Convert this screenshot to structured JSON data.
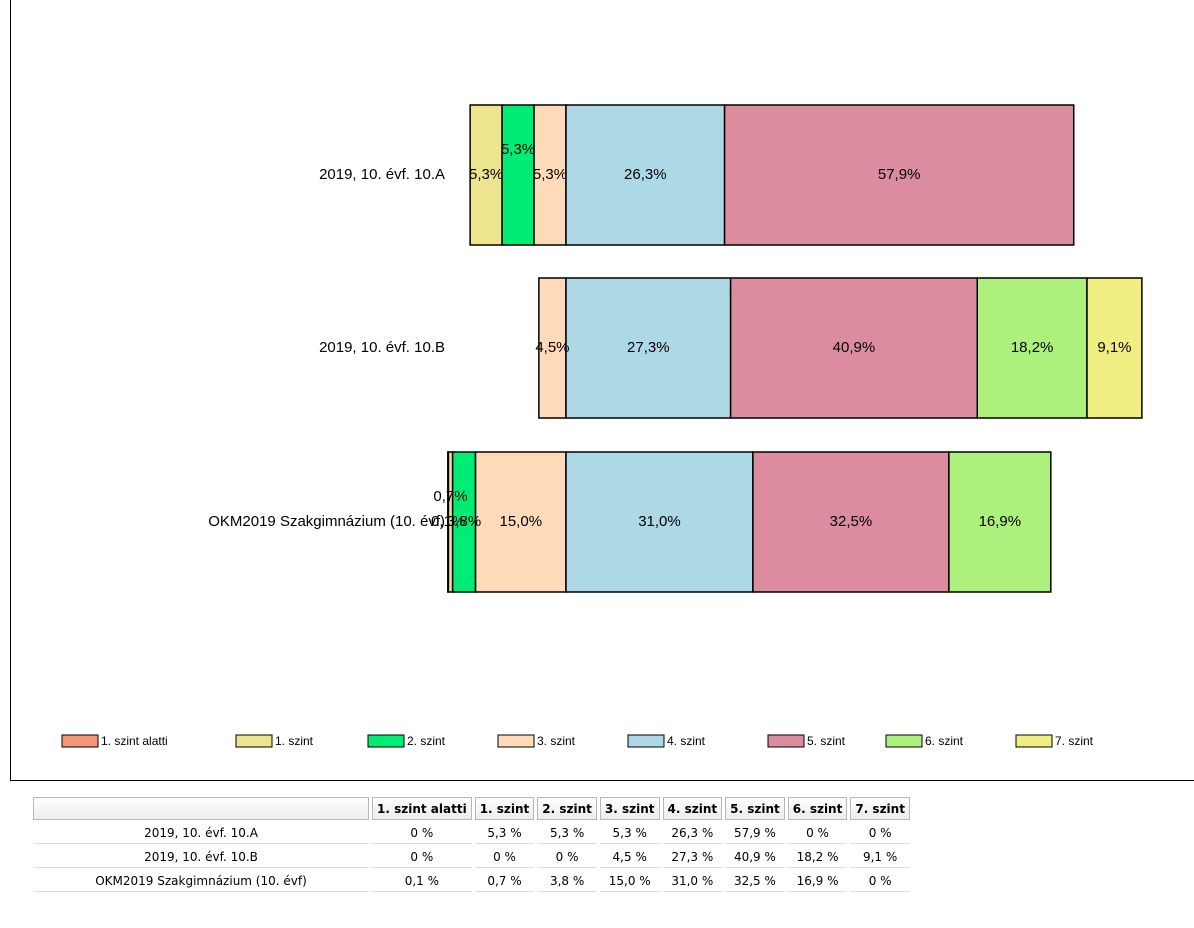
{
  "chart_data": {
    "type": "bar",
    "categories": [
      "2019, 10. évf. 10.A",
      "2019, 10. évf. 10.B",
      "OKM2019 Szakgimnázium (10. évf)"
    ],
    "series": [
      {
        "name": "1. szint alatti",
        "color": "#f4957a",
        "values": [
          0,
          0,
          0.1
        ],
        "value_labels": [
          null,
          null,
          "0,1%"
        ]
      },
      {
        "name": "1. szint",
        "color": "#ede48f",
        "values": [
          5.3,
          0,
          0.7
        ],
        "value_labels": [
          "5,3%",
          null,
          "0,7%"
        ]
      },
      {
        "name": "2. szint",
        "color": "#00ec74",
        "values": [
          5.3,
          0,
          3.8
        ],
        "value_labels": [
          "5,3%",
          null,
          "3,8%"
        ]
      },
      {
        "name": "3. szint",
        "color": "#ffdab8",
        "values": [
          5.3,
          4.5,
          15.0
        ],
        "value_labels": [
          "5,3%",
          "4,5%",
          "15,0%"
        ]
      },
      {
        "name": "4. szint",
        "color": "#add8e6",
        "values": [
          26.3,
          27.3,
          31.0
        ],
        "value_labels": [
          "26,3%",
          "27,3%",
          "31,0%"
        ]
      },
      {
        "name": "5. szint",
        "color": "#db8d9f",
        "values": [
          57.9,
          40.9,
          32.5
        ],
        "value_labels": [
          "57,9%",
          "40,9%",
          "32,5%"
        ]
      },
      {
        "name": "6. szint",
        "color": "#aef07c",
        "values": [
          0,
          18.2,
          16.9
        ],
        "value_labels": [
          null,
          "18,2%",
          "16,9%"
        ]
      },
      {
        "name": "7. szint",
        "color": "#f0ee80",
        "values": [
          0,
          9.1,
          0
        ],
        "value_labels": [
          null,
          "9,1%",
          null
        ]
      }
    ]
  },
  "table": {
    "header": [
      "1. szint alatti",
      "1. szint",
      "2. szint",
      "3. szint",
      "4. szint",
      "5. szint",
      "6. szint",
      "7. szint"
    ],
    "rows": [
      [
        "2019, 10. évf. 10.A",
        "0 %",
        "5,3 %",
        "5,3 %",
        "5,3 %",
        "26,3 %",
        "57,9 %",
        "0 %",
        "0 %"
      ],
      [
        "2019, 10. évf. 10.B",
        "0 %",
        "0 %",
        "0 %",
        "4,5 %",
        "27,3 %",
        "40,9 %",
        "18,2 %",
        "9,1 %"
      ],
      [
        "OKM2019 Szakgimnázium (10. évf)",
        "0,1 %",
        "0,7 %",
        "3,8 %",
        "15,0 %",
        "31,0 %",
        "32,5 %",
        "16,9 %",
        "0 %"
      ]
    ]
  }
}
